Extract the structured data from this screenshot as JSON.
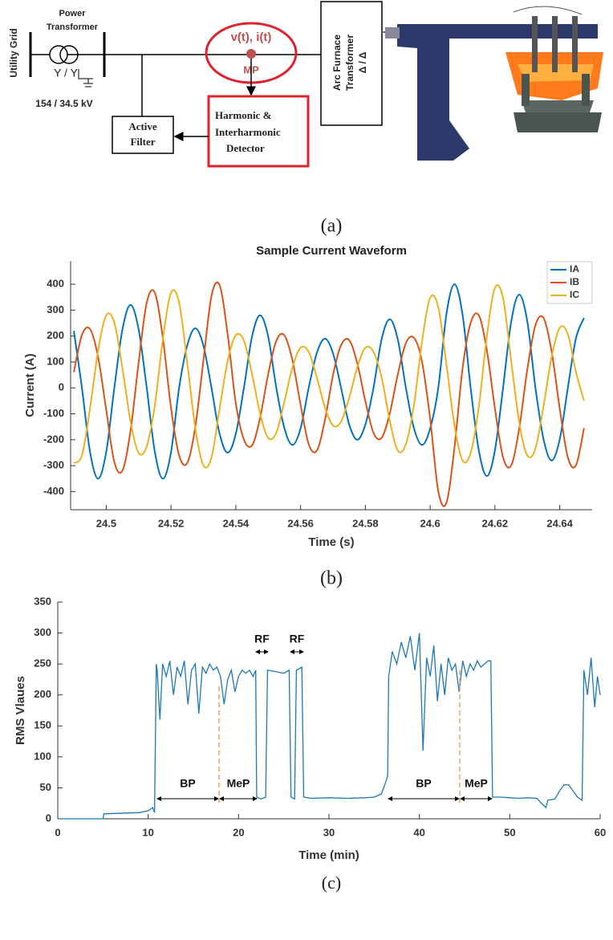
{
  "diagram": {
    "utility_grid": "Utility Grid",
    "power_transformer": [
      "Power",
      "Transformer"
    ],
    "transformer_connection": "Y / Y",
    "voltage": "154 / 34.5 kV",
    "measurement": "v(t), i(t)",
    "measurement_point": "MP",
    "detector": [
      "Harmonic &",
      "Interharmonic",
      "Detector"
    ],
    "active_filter": [
      "Active",
      "Filter"
    ],
    "arc_furnace_transformer": [
      "Arc Furnace",
      "Transformer",
      "Δ / Δ"
    ]
  },
  "captions": [
    "(a)",
    "(b)",
    "(c)"
  ],
  "chart_data": [
    {
      "type": "line",
      "title": "Sample Current Waveform",
      "xlabel": "Time (s)",
      "ylabel": "Current (A)",
      "x": [
        24.49,
        24.4925,
        24.495,
        24.4975,
        24.5,
        24.5025,
        24.505,
        24.5075,
        24.51,
        24.5125,
        24.515,
        24.5175,
        24.52,
        24.5225,
        24.525,
        24.5275,
        24.53,
        24.5325,
        24.535,
        24.5375,
        24.54,
        24.5425,
        24.545,
        24.5475,
        24.55,
        24.5525,
        24.555,
        24.5575,
        24.56,
        24.5625,
        24.565,
        24.5675,
        24.57,
        24.5725,
        24.575,
        24.5775,
        24.58,
        24.5825,
        24.585,
        24.5875,
        24.59,
        24.5925,
        24.595,
        24.5975,
        24.6,
        24.6025,
        24.605,
        24.6075,
        24.61,
        24.6125,
        24.615,
        24.6175,
        24.62,
        24.6225,
        24.625,
        24.6275,
        24.63,
        24.6325,
        24.635,
        24.6375,
        24.64,
        24.6425,
        24.645,
        24.6475
      ],
      "series": [
        {
          "name": "IA",
          "color": "#0072bd",
          "values": [
            220,
            0,
            -247,
            -350,
            -247,
            0,
            226,
            320,
            226,
            0,
            -247,
            -350,
            -247,
            0,
            163,
            230,
            163,
            0,
            -177,
            -250,
            -177,
            0,
            198,
            280,
            198,
            0,
            -156,
            -220,
            -156,
            0,
            134,
            190,
            134,
            0,
            -141,
            -200,
            -141,
            0,
            187,
            265,
            187,
            0,
            -156,
            -220,
            -156,
            0,
            283,
            400,
            283,
            0,
            -240,
            -340,
            -240,
            0,
            255,
            360,
            255,
            0,
            -198,
            -280,
            -198,
            0,
            191,
            270
          ]
        },
        {
          "name": "IB",
          "color": "#d95319",
          "values": [
            61,
            204,
            227,
            118,
            -85,
            -286,
            -319,
            -165,
            98,
            329,
            367,
            190,
            -78,
            -260,
            -290,
            -150,
            106,
            355,
            396,
            205,
            -60,
            -199,
            -222,
            -115,
            54,
            182,
            203,
            105,
            -65,
            -217,
            -242,
            -125,
            49,
            165,
            184,
            95,
            -52,
            -173,
            -193,
            -100,
            52,
            173,
            193,
            100,
            -119,
            -398,
            -444,
            -230,
            75,
            251,
            280,
            145,
            -80,
            -268,
            -299,
            -155,
            73,
            242,
            270,
            140,
            -80,
            -268,
            -299,
            -155
          ]
        },
        {
          "name": "IC",
          "color": "#edb120",
          "values": [
            -290,
            -260,
            -78,
            145,
            280,
            251,
            75,
            -130,
            -251,
            -225,
            -67,
            190,
            367,
            329,
            98,
            -155,
            -299,
            -268,
            -80,
            105,
            203,
            182,
            54,
            -100,
            -193,
            -173,
            -52,
            80,
            155,
            139,
            41,
            -75,
            -145,
            -130,
            -39,
            80,
            155,
            139,
            41,
            -125,
            -242,
            -217,
            -65,
            180,
            348,
            312,
            93,
            -145,
            -280,
            -251,
            -75,
            200,
            386,
            346,
            104,
            -135,
            -261,
            -234,
            -70,
            120,
            232,
            208,
            62,
            -50
          ]
        }
      ],
      "xlim": [
        24.489,
        24.65
      ],
      "ylim": [
        -470,
        490
      ],
      "xticks": [
        24.5,
        24.52,
        24.54,
        24.56,
        24.58,
        24.6,
        24.62,
        24.64
      ],
      "yticks": [
        -400,
        -300,
        -200,
        -100,
        0,
        100,
        200,
        300,
        400
      ],
      "grid": false,
      "legend": "upper right"
    },
    {
      "type": "line",
      "xlabel": "Time (min)",
      "ylabel": "RMS Vlaues",
      "color": "#1f77b4",
      "x": [
        0,
        5,
        5.1,
        9,
        10,
        10.5,
        10.7,
        10.9,
        11,
        11.3,
        11.6,
        12,
        12.4,
        12.8,
        13.2,
        13.6,
        14,
        14.4,
        14.8,
        15.2,
        15.6,
        16,
        16.4,
        16.8,
        17.2,
        17.6,
        18,
        18.4,
        18.8,
        19.2,
        19.6,
        20,
        20.4,
        20.8,
        21.2,
        21.6,
        21.9,
        22,
        22.5,
        23,
        23.2,
        24,
        25,
        25.6,
        25.8,
        26.2,
        26.4,
        27,
        27.2,
        28,
        30,
        32,
        34,
        35,
        35.8,
        36.3,
        36.5,
        36.6,
        37,
        37.5,
        38,
        38.5,
        39,
        39.5,
        40,
        40.4,
        40.8,
        41.2,
        41.6,
        42,
        42.4,
        42.8,
        43.2,
        43.6,
        44,
        44.4,
        44.8,
        45.2,
        45.6,
        46,
        46.4,
        46.8,
        47.2,
        47.6,
        47.9,
        48.1,
        49,
        50,
        51,
        52,
        53,
        53.5,
        54,
        54.2,
        55,
        55.5,
        56,
        56.5,
        57,
        57.5,
        58,
        58.2,
        58.6,
        59,
        59.4,
        59.7,
        60
      ],
      "values": [
        0,
        0,
        8,
        10,
        13,
        18,
        10,
        250,
        240,
        160,
        250,
        230,
        255,
        200,
        245,
        230,
        255,
        185,
        240,
        250,
        170,
        245,
        235,
        250,
        240,
        245,
        230,
        185,
        225,
        240,
        205,
        230,
        240,
        235,
        240,
        230,
        240,
        35,
        32,
        35,
        240,
        238,
        235,
        240,
        35,
        32,
        240,
        245,
        35,
        33,
        34,
        33,
        34,
        35,
        40,
        60,
        70,
        230,
        270,
        250,
        285,
        260,
        295,
        240,
        300,
        110,
        260,
        230,
        280,
        190,
        250,
        200,
        260,
        240,
        250,
        205,
        255,
        230,
        250,
        240,
        255,
        245,
        250,
        255,
        255,
        35,
        35,
        34,
        33,
        34,
        33,
        25,
        18,
        30,
        32,
        45,
        55,
        55,
        45,
        35,
        30,
        240,
        200,
        260,
        180,
        230,
        200
      ],
      "xlim": [
        0,
        60
      ],
      "ylim": [
        0,
        350
      ],
      "xticks": [
        0,
        10,
        20,
        30,
        40,
        50,
        60
      ],
      "yticks": [
        0,
        50,
        100,
        150,
        200,
        250,
        300,
        350
      ],
      "grid": false,
      "annotations": [
        "BP",
        "MeP",
        "RF",
        "RF",
        "BP",
        "MeP"
      ]
    }
  ]
}
